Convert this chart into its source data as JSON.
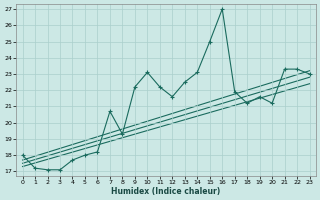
{
  "xlabel": "Humidex (Indice chaleur)",
  "bg_color": "#cce8e5",
  "grid_color": "#aacfcc",
  "line_color": "#1a6b5e",
  "xlim": [
    -0.5,
    23.5
  ],
  "ylim": [
    16.7,
    27.3
  ],
  "xticks": [
    0,
    1,
    2,
    3,
    4,
    5,
    6,
    7,
    8,
    9,
    10,
    11,
    12,
    13,
    14,
    15,
    16,
    17,
    18,
    19,
    20,
    21,
    22,
    23
  ],
  "yticks": [
    17,
    18,
    19,
    20,
    21,
    22,
    23,
    24,
    25,
    26,
    27
  ],
  "main_x": [
    0,
    1,
    2,
    3,
    4,
    5,
    6,
    7,
    8,
    9,
    10,
    11,
    12,
    13,
    14,
    15,
    16,
    17,
    18,
    19,
    20,
    21,
    22,
    23
  ],
  "main_y": [
    18.0,
    17.2,
    17.1,
    17.1,
    17.7,
    18.0,
    18.2,
    20.7,
    19.3,
    22.2,
    23.1,
    22.2,
    21.6,
    22.5,
    23.1,
    25.0,
    27.0,
    21.9,
    21.2,
    21.6,
    21.2,
    23.3,
    23.3,
    23.0
  ],
  "trend1_x": [
    0,
    23
  ],
  "trend1_y": [
    17.7,
    23.2
  ],
  "trend2_x": [
    0,
    23
  ],
  "trend2_y": [
    17.5,
    22.8
  ],
  "trend3_x": [
    0,
    23
  ],
  "trend3_y": [
    17.3,
    22.4
  ]
}
